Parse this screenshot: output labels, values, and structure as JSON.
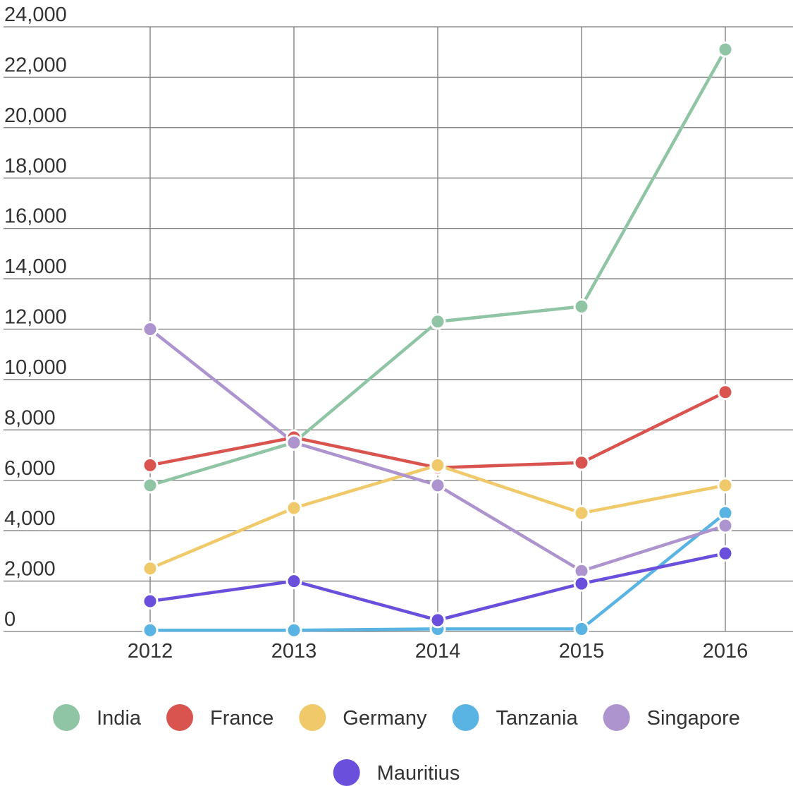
{
  "chart_data": {
    "type": "line",
    "title": "",
    "xlabel": "",
    "ylabel": "",
    "x": [
      "2012",
      "2013",
      "2014",
      "2015",
      "2016"
    ],
    "ylim": [
      0,
      24000
    ],
    "yticks": [
      0,
      2000,
      4000,
      6000,
      8000,
      10000,
      12000,
      14000,
      16000,
      18000,
      20000,
      22000,
      24000
    ],
    "ytick_labels": [
      "0",
      "2,000",
      "4,000",
      "6,000",
      "8,000",
      "10,000",
      "12,000",
      "14,000",
      "16,000",
      "18,000",
      "20,000",
      "22,000",
      "24,000"
    ],
    "grid": true,
    "legend_position": "bottom",
    "series": [
      {
        "name": "India",
        "color": "#8fc4a4",
        "values": [
          5800,
          7500,
          12300,
          12900,
          23100
        ]
      },
      {
        "name": "France",
        "color": "#d9534f",
        "values": [
          6600,
          7700,
          6500,
          6700,
          9500
        ]
      },
      {
        "name": "Germany",
        "color": "#f0c96a",
        "values": [
          2500,
          4900,
          6600,
          4700,
          5800
        ]
      },
      {
        "name": "Tanzania",
        "color": "#5ab4e3",
        "values": [
          50,
          50,
          100,
          100,
          4700
        ]
      },
      {
        "name": "Singapore",
        "color": "#ae94cf",
        "values": [
          12000,
          7500,
          5800,
          2400,
          4200
        ]
      },
      {
        "name": "Mauritius",
        "color": "#6a4fdc",
        "values": [
          1200,
          2000,
          450,
          1900,
          3100
        ]
      }
    ]
  }
}
